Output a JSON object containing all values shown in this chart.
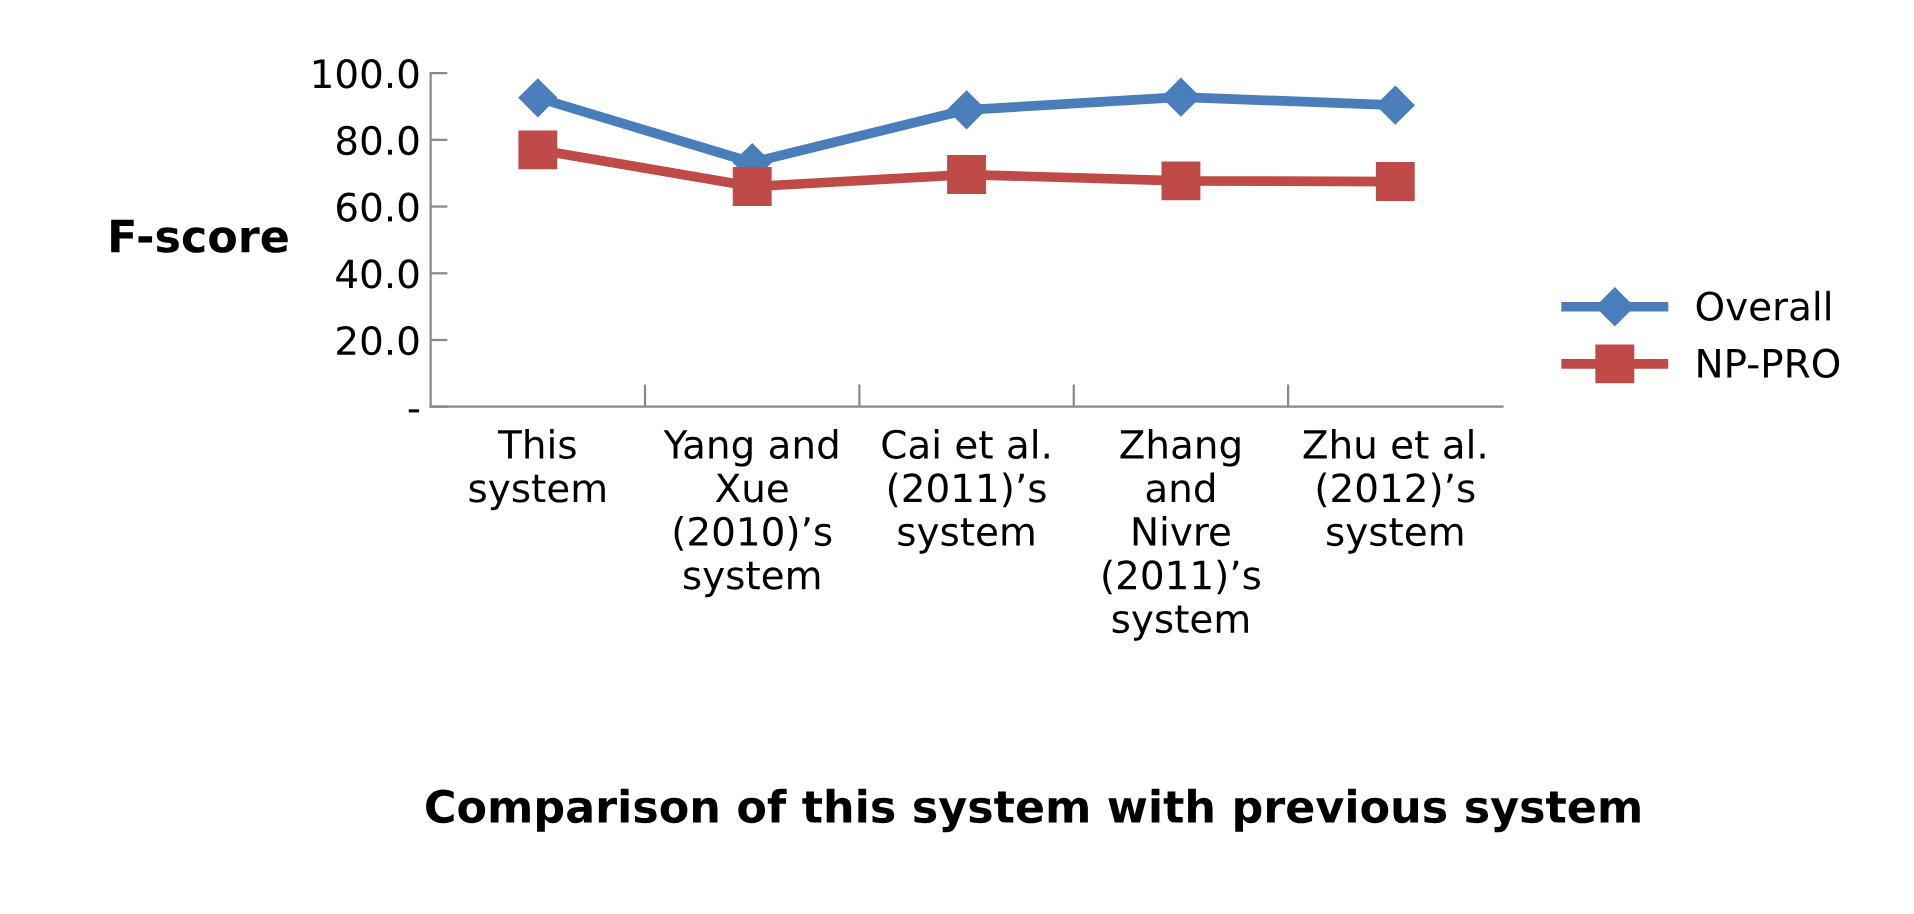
{
  "chart_data": {
    "type": "line",
    "ylabel": "F-score",
    "xlabel": "Comparison of this system with previous system",
    "categories": [
      "This\nsystem",
      "Yang and\nXue\n(2010)’s\nsystem",
      "Cai et al.\n(2011)’s\nsystem",
      "Zhang\nand\nNivre\n(2011)’s\nsystem",
      "Zhu et al.\n(2012)’s\nsystem"
    ],
    "series": [
      {
        "name": "Overall",
        "color": "#4a7ebb",
        "marker": "diamond",
        "values": [
          92.6,
          73.2,
          89.0,
          92.8,
          90.4
        ]
      },
      {
        "name": "NP-PRO",
        "color": "#be4b48",
        "marker": "square",
        "values": [
          77.0,
          66.0,
          69.6,
          67.7,
          67.5
        ]
      }
    ],
    "ylim": [
      0,
      100
    ],
    "yticks": [
      {
        "value": 0,
        "label": "-"
      },
      {
        "value": 20,
        "label": "20.0"
      },
      {
        "value": 40,
        "label": "40.0"
      },
      {
        "value": 60,
        "label": "60.0"
      },
      {
        "value": 80,
        "label": "80.0"
      },
      {
        "value": 100,
        "label": "100.0"
      }
    ],
    "grid": false,
    "legend": "right",
    "line_style": "solid"
  }
}
